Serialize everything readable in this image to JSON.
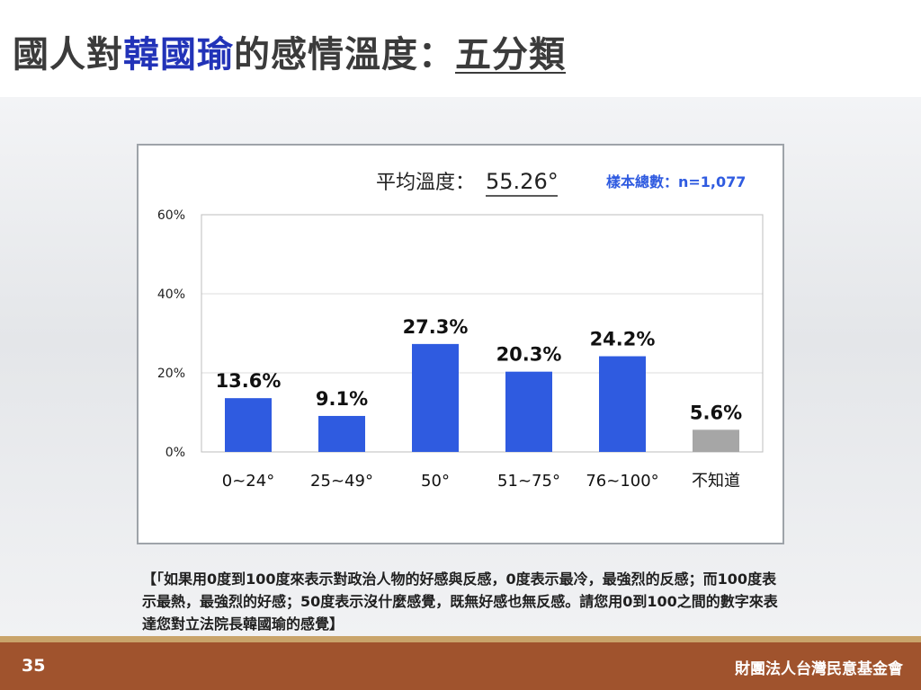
{
  "slide": {
    "title_pre": "國人對",
    "title_name": "韓國瑜",
    "title_mid": "的感情溫度：",
    "title_cat": "五分類",
    "page_number": "35",
    "organization": "財團法人台灣民意基金會",
    "note": "【「如果用0度到100度來表示對政治人物的好感與反感，0度表示最冷，最強烈的反感；而100度表示最熱，最強烈的好感；50度表示沒什麼感覺，既無好感也無反感。請您用0到100之間的數字來表達您對立法院長韓國瑜的感覺】"
  },
  "chart_data": {
    "type": "bar",
    "avg_label": "平均溫度：",
    "avg_value": "55.26°",
    "sample_label": "樣本總數：n=1,077",
    "categories": [
      "0~24°",
      "25~49°",
      "50°",
      "51~75°",
      "76~100°",
      "不知道"
    ],
    "values": [
      13.6,
      9.1,
      27.3,
      20.3,
      24.2,
      5.6
    ],
    "value_labels": [
      "13.6%",
      "9.1%",
      "27.3%",
      "20.3%",
      "24.2%",
      "5.6%"
    ],
    "yticks": [
      "0%",
      "20%",
      "40%",
      "60%"
    ],
    "ylim": [
      0,
      60
    ],
    "grid": true,
    "colors": {
      "bar": "#2f5be0",
      "bar_unknown": "#a6a6a6",
      "sample_text": "#2f5be0",
      "title_highlight": "#2233b8",
      "footer": "#a0532d"
    }
  }
}
